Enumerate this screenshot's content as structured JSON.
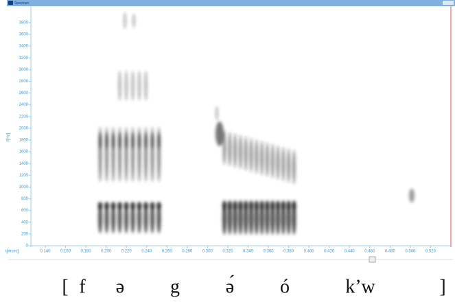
{
  "window_title": "Spectrum",
  "chart_data": {
    "type": "spectrogram",
    "xlabel": "t[msec]",
    "ylabel": "f[Hz]",
    "xlim": [
      0.1258,
      0.54
    ],
    "ylim": [
      0,
      3950
    ],
    "xticks": [
      {
        "value": 0.14,
        "label": "0.140"
      },
      {
        "value": 0.16,
        "label": "0.160"
      },
      {
        "value": 0.18,
        "label": "0.180"
      },
      {
        "value": 0.2,
        "label": "0.200"
      },
      {
        "value": 0.22,
        "label": "0.220"
      },
      {
        "value": 0.24,
        "label": "0.240"
      },
      {
        "value": 0.26,
        "label": "0.260"
      },
      {
        "value": 0.28,
        "label": "0.280"
      },
      {
        "value": 0.3,
        "label": "0.300"
      },
      {
        "value": 0.32,
        "label": "0.320"
      },
      {
        "value": 0.34,
        "label": "0.340"
      },
      {
        "value": 0.36,
        "label": "0.360"
      },
      {
        "value": 0.38,
        "label": "0.380"
      },
      {
        "value": 0.4,
        "label": "0.400"
      },
      {
        "value": 0.42,
        "label": "0.420"
      },
      {
        "value": 0.44,
        "label": "0.440"
      },
      {
        "value": 0.46,
        "label": "0.460"
      },
      {
        "value": 0.48,
        "label": "0.480"
      },
      {
        "value": 0.5,
        "label": "0.500"
      },
      {
        "value": 0.52,
        "label": "0.520"
      }
    ],
    "yticks": [
      0,
      200,
      400,
      600,
      800,
      1000,
      1200,
      1400,
      1600,
      1800,
      2000,
      2200,
      2400,
      2600,
      2800,
      3000,
      3200,
      3400,
      3600,
      3800
    ]
  },
  "transcription": [
    "[",
    "f",
    "ə",
    "g",
    "ə́",
    "ó",
    "k’w",
    "]"
  ]
}
